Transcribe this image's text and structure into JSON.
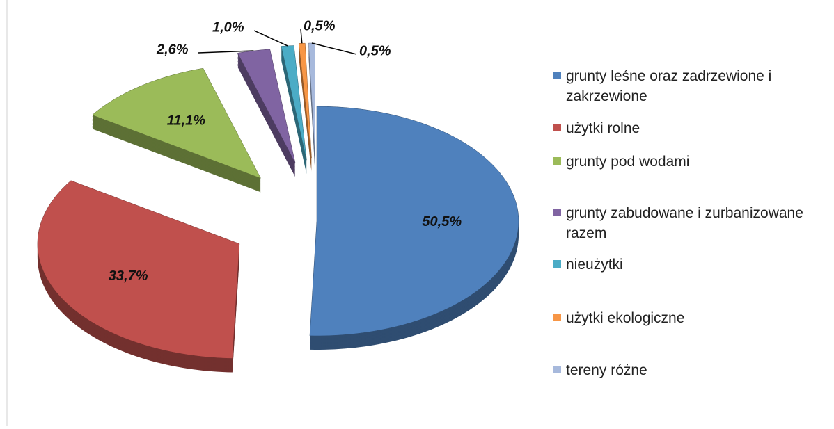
{
  "chart_data": {
    "type": "pie",
    "categories": [
      "grunty leśne oraz zadrzewione i zakrzewione",
      "użytki rolne",
      "grunty pod wodami",
      "grunty zabudowane i zurbanizowane razem",
      "nieużytki",
      "użytki ekologiczne",
      "tereny różne"
    ],
    "values": [
      50.5,
      33.7,
      11.1,
      2.6,
      1.0,
      0.5,
      0.5
    ],
    "value_labels": [
      "50,5%",
      "33,7%",
      "11,1%",
      "2,6%",
      "1,0%",
      "0,5%",
      "0,5%"
    ],
    "colors": [
      "#4f81bd",
      "#c0504d",
      "#9bbb59",
      "#8064a2",
      "#4bacc6",
      "#f79646",
      "#a7b9dc"
    ],
    "legend": "right"
  }
}
